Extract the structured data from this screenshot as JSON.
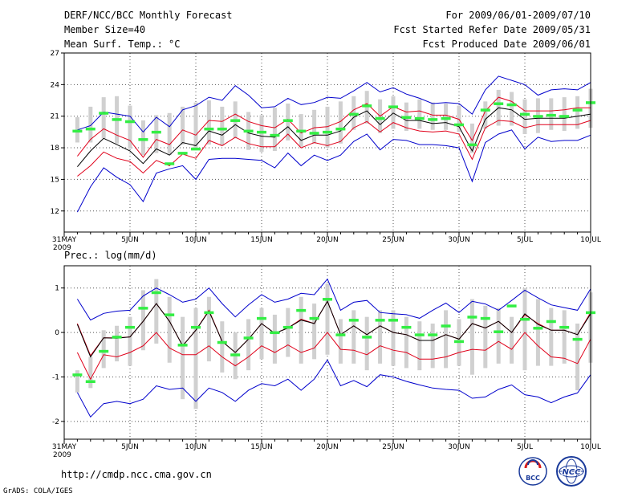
{
  "header": {
    "title": "DERF/NCC/BCC Monthly Forecast",
    "member_size": "Member Size=40",
    "variable": "Mean Surf. Temp.: °C",
    "period": "For 2009/06/01-2009/07/10",
    "started": "Fcst Started Refer Date 2009/05/31",
    "produced": "Fcst Produced Date 2009/06/01"
  },
  "footer": {
    "url": "http://cmdp.ncc.cma.gov.cn",
    "credit": "GrADS: COLA/IGES",
    "logo_bcc": "BCC",
    "logo_ncc": "NCC"
  },
  "colors": {
    "ensemble_range": "#0000cc",
    "percentile": "#e0001a",
    "mean": "#000000",
    "observed": "#33ee44",
    "box": "#d0d0d0"
  },
  "chart_data": [
    {
      "type": "line",
      "name": "temperature",
      "title": "Mean Surf. Temp.: °C",
      "ylim": [
        10,
        27
      ],
      "yticks": [
        12,
        15,
        18,
        21,
        24,
        27
      ],
      "xlim": [
        0,
        40
      ],
      "xticks": [
        {
          "x": 0,
          "label": "31MAY",
          "sub": "2009"
        },
        {
          "x": 5,
          "label": "5JUN"
        },
        {
          "x": 10,
          "label": "10JUN"
        },
        {
          "x": 15,
          "label": "15JUN"
        },
        {
          "x": 20,
          "label": "20JUN"
        },
        {
          "x": 25,
          "label": "25JUN"
        },
        {
          "x": 30,
          "label": "30JUN"
        },
        {
          "x": 35,
          "label": "5JUL"
        },
        {
          "x": 40,
          "label": "10JUL"
        }
      ],
      "x": [
        1,
        2,
        3,
        4,
        5,
        6,
        7,
        8,
        9,
        10,
        11,
        12,
        13,
        14,
        15,
        16,
        17,
        18,
        19,
        20,
        21,
        22,
        23,
        24,
        25,
        26,
        27,
        28,
        29,
        30,
        31,
        32,
        33,
        34,
        35,
        36,
        37,
        38,
        39,
        40
      ],
      "series": [
        {
          "name": "max",
          "values": [
            11.9,
            14.3,
            16.1,
            15.2,
            14.5,
            12.9,
            15.6,
            16.0,
            16.3,
            15.0,
            16.9,
            17.0,
            17.0,
            16.9,
            16.8,
            16.1,
            17.5,
            16.3,
            17.3,
            16.8,
            17.3,
            18.6,
            19.3,
            17.8,
            18.8,
            18.7,
            18.3,
            18.3,
            18.2,
            18.0,
            14.8,
            18.5,
            19.3,
            19.7,
            17.9,
            19.0,
            18.6,
            18.7,
            18.7,
            19.2
          ]
        },
        {
          "name": "min",
          "values": [
            19.7,
            20.1,
            21.4,
            21.2,
            21.0,
            19.5,
            20.9,
            20.0,
            21.6,
            22.0,
            22.8,
            22.5,
            23.9,
            23.0,
            21.8,
            21.9,
            22.7,
            22.1,
            22.3,
            22.8,
            22.7,
            23.4,
            24.2,
            23.3,
            23.7,
            23.1,
            22.7,
            22.2,
            22.3,
            22.2,
            21.2,
            23.5,
            24.8,
            24.4,
            24.0,
            23.0,
            23.5,
            23.6,
            23.5,
            24.2
          ]
        },
        {
          "name": "p25",
          "values": [
            15.3,
            16.3,
            17.6,
            17.0,
            16.7,
            15.6,
            16.8,
            16.3,
            17.4,
            17.0,
            18.7,
            18.2,
            19.0,
            18.4,
            18.1,
            18.1,
            19.3,
            18.0,
            18.5,
            18.2,
            18.6,
            19.9,
            20.5,
            19.5,
            20.4,
            19.9,
            19.6,
            19.5,
            19.6,
            19.3,
            16.9,
            19.9,
            20.6,
            20.5,
            19.9,
            20.2,
            20.2,
            20.2,
            20.2,
            20.6
          ]
        },
        {
          "name": "p75",
          "values": [
            17.2,
            18.8,
            19.8,
            19.2,
            18.7,
            17.1,
            18.8,
            18.3,
            19.7,
            19.2,
            20.6,
            20.5,
            21.2,
            20.5,
            20.1,
            19.9,
            20.7,
            19.4,
            19.9,
            20.0,
            20.5,
            21.6,
            22.2,
            21.0,
            21.9,
            21.4,
            21.5,
            21.1,
            21.1,
            20.7,
            18.7,
            21.5,
            22.8,
            22.4,
            21.5,
            21.5,
            21.5,
            21.6,
            21.8,
            21.8
          ]
        },
        {
          "name": "mean",
          "values": [
            16.2,
            17.7,
            18.9,
            18.3,
            17.7,
            16.5,
            17.9,
            17.3,
            18.5,
            18.2,
            19.6,
            19.2,
            20.2,
            19.4,
            19.1,
            19.0,
            20.0,
            18.7,
            19.2,
            19.2,
            19.6,
            20.9,
            21.5,
            20.2,
            21.3,
            20.6,
            20.6,
            20.3,
            20.4,
            20.0,
            17.7,
            20.7,
            21.8,
            21.6,
            20.7,
            20.8,
            20.8,
            20.8,
            21.0,
            21.2
          ]
        },
        {
          "name": "observed",
          "values": [
            19.6,
            19.8,
            21.3,
            20.7,
            20.5,
            18.8,
            19.5,
            16.5,
            17.5,
            17.9,
            19.8,
            19.8,
            20.6,
            19.6,
            19.5,
            19.2,
            20.6,
            19.6,
            19.4,
            19.5,
            19.8,
            21.2,
            22.0,
            20.8,
            21.9,
            20.9,
            20.8,
            20.7,
            20.8,
            20.2,
            18.3,
            21.6,
            22.2,
            22.1,
            21.2,
            21.0,
            21.1,
            21.0,
            21.6,
            22.3
          ]
        },
        {
          "name": "box_low",
          "values": [
            18.5,
            18.5,
            18.9,
            18.4,
            17.9,
            17.3,
            17.5,
            17.3,
            18.3,
            17.8,
            18.3,
            18.2,
            18.9,
            17.8,
            17.6,
            17.7,
            18.7,
            18.1,
            18.4,
            18.0,
            18.4,
            19.7,
            20.3,
            19.4,
            19.8,
            19.6,
            19.8,
            19.7,
            19.7,
            19.5,
            17.5,
            19.8,
            20.1,
            20.1,
            19.3,
            19.4,
            19.7,
            19.6,
            19.8,
            19.9
          ]
        },
        {
          "name": "box_high",
          "values": [
            20.9,
            21.9,
            22.8,
            22.9,
            22.0,
            20.6,
            21.1,
            21.3,
            21.9,
            22.3,
            22.5,
            21.9,
            22.4,
            21.4,
            21.1,
            21.8,
            22.2,
            21.2,
            21.6,
            21.9,
            22.4,
            22.9,
            23.4,
            22.6,
            22.9,
            22.3,
            22.6,
            22.3,
            22.2,
            22.0,
            20.3,
            22.4,
            23.5,
            23.3,
            22.6,
            22.7,
            22.7,
            22.8,
            22.9,
            23.6
          ]
        }
      ]
    },
    {
      "type": "line",
      "name": "precipitation",
      "title": "Prec.: log(mm/d)",
      "ylim": [
        -2.4,
        1.5
      ],
      "yticks": [
        -2,
        -1,
        0,
        1
      ],
      "xlim": [
        0,
        40
      ],
      "xticks": [
        {
          "x": 0,
          "label": "31MAY",
          "sub": "2009"
        },
        {
          "x": 5,
          "label": "5JUN"
        },
        {
          "x": 10,
          "label": "10JUN"
        },
        {
          "x": 15,
          "label": "15JUN"
        },
        {
          "x": 20,
          "label": "20JUN"
        },
        {
          "x": 25,
          "label": "25JUN"
        },
        {
          "x": 30,
          "label": "30JUN"
        },
        {
          "x": 35,
          "label": "5JUL"
        },
        {
          "x": 40,
          "label": "10JUL"
        }
      ],
      "x": [
        1,
        2,
        3,
        4,
        5,
        6,
        7,
        8,
        9,
        10,
        11,
        12,
        13,
        14,
        15,
        16,
        17,
        18,
        19,
        20,
        21,
        22,
        23,
        24,
        25,
        26,
        27,
        28,
        29,
        30,
        31,
        32,
        33,
        34,
        35,
        36,
        37,
        38,
        39,
        40
      ],
      "series": [
        {
          "name": "max",
          "values": [
            0.75,
            0.28,
            0.43,
            0.48,
            0.5,
            0.82,
            1.0,
            0.85,
            0.68,
            0.75,
            1.0,
            0.65,
            0.35,
            0.62,
            0.85,
            0.68,
            0.75,
            0.88,
            0.85,
            1.2,
            0.5,
            0.68,
            0.72,
            0.45,
            0.42,
            0.4,
            0.32,
            0.5,
            0.66,
            0.45,
            0.7,
            0.64,
            0.5,
            0.72,
            0.95,
            0.78,
            0.62,
            0.56,
            0.5,
            0.98
          ]
        },
        {
          "name": "min",
          "values": [
            -1.35,
            -1.9,
            -1.6,
            -1.55,
            -1.6,
            -1.5,
            -1.2,
            -1.28,
            -1.25,
            -1.55,
            -1.25,
            -1.35,
            -1.55,
            -1.3,
            -1.15,
            -1.2,
            -1.05,
            -1.3,
            -1.05,
            -0.62,
            -1.2,
            -1.08,
            -1.22,
            -0.95,
            -1.0,
            -1.1,
            -1.18,
            -1.25,
            -1.28,
            -1.3,
            -1.48,
            -1.45,
            -1.28,
            -1.18,
            -1.4,
            -1.45,
            -1.58,
            -1.45,
            -1.36,
            -0.95
          ]
        },
        {
          "name": "p25",
          "values": [
            -0.45,
            -1.05,
            -0.5,
            -0.55,
            -0.45,
            -0.3,
            0.0,
            -0.35,
            -0.5,
            -0.5,
            -0.3,
            -0.55,
            -0.75,
            -0.55,
            -0.3,
            -0.45,
            -0.28,
            -0.45,
            -0.35,
            0.0,
            -0.38,
            -0.4,
            -0.5,
            -0.3,
            -0.4,
            -0.45,
            -0.6,
            -0.6,
            -0.55,
            -0.45,
            -0.38,
            -0.4,
            -0.2,
            -0.38,
            0.0,
            -0.3,
            -0.55,
            -0.58,
            -0.7,
            -0.15
          ]
        },
        {
          "name": "p75",
          "values": [
            0.2,
            -0.52,
            -0.12,
            -0.12,
            -0.1,
            0.25,
            0.65,
            0.25,
            -0.3,
            0.05,
            0.5,
            -0.2,
            -0.45,
            -0.15,
            0.2,
            -0.02,
            0.1,
            0.3,
            0.2,
            0.7,
            -0.05,
            0.15,
            -0.05,
            0.15,
            0.0,
            -0.05,
            -0.18,
            -0.18,
            -0.05,
            -0.15,
            0.2,
            0.1,
            0.25,
            0.0,
            0.4,
            0.2,
            0.05,
            0.05,
            -0.05,
            0.45
          ]
        },
        {
          "name": "mean",
          "values": [
            0.18,
            -0.55,
            -0.12,
            -0.13,
            -0.1,
            0.25,
            0.65,
            0.25,
            -0.3,
            0.05,
            0.48,
            -0.2,
            -0.45,
            -0.15,
            0.2,
            -0.02,
            0.1,
            0.28,
            0.2,
            0.7,
            -0.05,
            0.15,
            -0.05,
            0.15,
            0.0,
            -0.05,
            -0.18,
            -0.18,
            -0.05,
            -0.15,
            0.2,
            0.1,
            0.25,
            0.0,
            0.42,
            0.18,
            0.05,
            0.05,
            -0.05,
            0.42
          ]
        },
        {
          "name": "observed",
          "values": [
            -0.95,
            -1.1,
            -0.42,
            -0.1,
            0.12,
            0.55,
            0.9,
            0.4,
            -0.28,
            0.12,
            0.45,
            -0.22,
            -0.5,
            -0.12,
            0.32,
            0.0,
            0.12,
            0.5,
            0.32,
            0.75,
            -0.05,
            0.28,
            -0.1,
            0.28,
            0.28,
            0.12,
            -0.05,
            -0.05,
            0.15,
            -0.2,
            0.35,
            0.32,
            0.02,
            0.6,
            0.3,
            0.1,
            0.25,
            0.12,
            -0.15,
            0.45
          ]
        },
        {
          "name": "box_low",
          "values": [
            -1.35,
            -1.25,
            -0.8,
            -0.65,
            -0.75,
            -0.4,
            -0.25,
            -0.68,
            -1.5,
            -1.72,
            -0.65,
            -0.9,
            -1.05,
            -0.85,
            -0.6,
            -0.7,
            -0.55,
            -0.7,
            -0.6,
            -0.5,
            -0.7,
            -0.7,
            -0.85,
            -0.7,
            -0.75,
            -0.8,
            -0.85,
            -0.8,
            -0.8,
            -0.75,
            -0.95,
            -0.8,
            -0.7,
            -0.7,
            -0.85,
            -0.75,
            -0.75,
            -0.7,
            -1.3,
            -0.68
          ]
        },
        {
          "name": "box_high",
          "values": [
            -0.85,
            -0.55,
            0.05,
            0.15,
            0.35,
            0.95,
            1.2,
            0.8,
            0.35,
            0.55,
            0.8,
            0.25,
            0.0,
            0.3,
            0.55,
            0.4,
            0.55,
            0.8,
            0.65,
            1.1,
            0.3,
            0.5,
            0.35,
            0.5,
            0.5,
            0.35,
            0.25,
            0.2,
            0.5,
            0.3,
            0.75,
            0.6,
            0.55,
            0.35,
            1.0,
            0.75,
            0.55,
            0.5,
            0.2,
            0.9
          ]
        }
      ]
    }
  ]
}
